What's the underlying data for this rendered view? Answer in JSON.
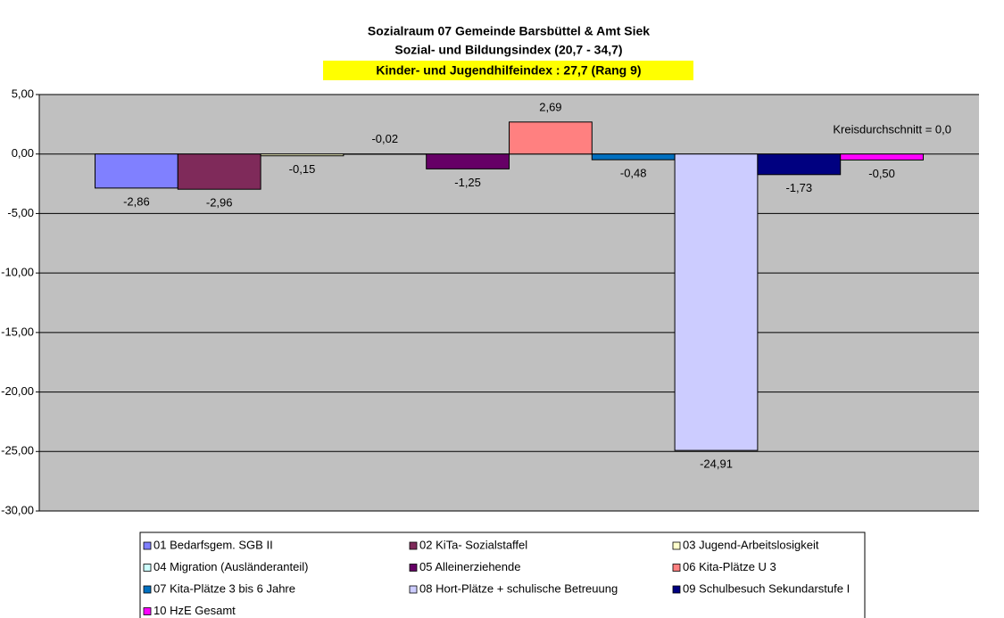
{
  "chart_data": {
    "type": "bar",
    "title": "Sozialraum 07 Gemeinde Barsbüttel & Amt Siek",
    "subtitle": "Sozial- und Bildungsindex (20,7 - 34,7)",
    "highlight": "Kinder- und Jugendhilfeindex : 27,7 (Rang 9)",
    "annotation": "Kreisdurchschnitt = 0,0",
    "ylim": [
      -30,
      5
    ],
    "yticks": [
      {
        "value": 5,
        "label": "5,00"
      },
      {
        "value": 0,
        "label": "0,00"
      },
      {
        "value": -5,
        "label": "-5,00"
      },
      {
        "value": -10,
        "label": "-10,00"
      },
      {
        "value": -15,
        "label": "-15,00"
      },
      {
        "value": -20,
        "label": "-20,00"
      },
      {
        "value": -25,
        "label": "-25,00"
      },
      {
        "value": -30,
        "label": "-30,00"
      }
    ],
    "grid": true,
    "series": [
      {
        "name": "01 Bedarfsgem. SGB II",
        "color": "#8080ff",
        "values": [
          -2.86
        ],
        "value_labels": [
          "-2,86"
        ]
      },
      {
        "name": "02 KiTa- Sozialstaffel",
        "color": "#7f2a5a",
        "values": [
          -2.96
        ],
        "value_labels": [
          "-2,96"
        ]
      },
      {
        "name": "03 Jugend-Arbeitslosigkeit",
        "color": "#ffffcc",
        "values": [
          -0.15
        ],
        "value_labels": [
          "-0,15"
        ]
      },
      {
        "name": "04 Migration (Ausländeranteil)",
        "color": "#ccffff",
        "values": [
          -0.02
        ],
        "value_labels": [
          "-0,02"
        ]
      },
      {
        "name": "05 Alleinerziehende",
        "color": "#660066",
        "values": [
          -1.25
        ],
        "value_labels": [
          "-1,25"
        ]
      },
      {
        "name": "06 Kita-Plätze U 3",
        "color": "#ff8080",
        "values": [
          2.69
        ],
        "value_labels": [
          "2,69"
        ]
      },
      {
        "name": "07 Kita-Plätze  3 bis 6 Jahre",
        "color": "#0070c0",
        "values": [
          -0.48
        ],
        "value_labels": [
          "-0,48"
        ]
      },
      {
        "name": "08 Hort-Plätze + schulische Betreuung",
        "color": "#ccccff",
        "values": [
          -24.91
        ],
        "value_labels": [
          "-24,91"
        ]
      },
      {
        "name": "09 Schulbesuch Sekundarstufe I",
        "color": "#000080",
        "values": [
          -1.73
        ],
        "value_labels": [
          "-1,73"
        ]
      },
      {
        "name": "10 HzE Gesamt",
        "color": "#ff00ff",
        "values": [
          -0.5
        ],
        "value_labels": [
          "-0,50"
        ]
      }
    ]
  }
}
